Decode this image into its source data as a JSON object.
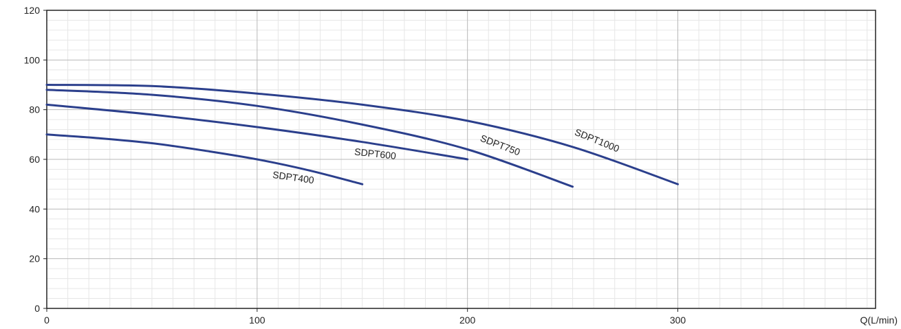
{
  "chart_data": {
    "type": "line",
    "title": "",
    "xlabel": "Q(L/min)",
    "ylabel": "",
    "xlim": [
      0,
      394
    ],
    "ylim": [
      0,
      120
    ],
    "x_ticks": [
      0,
      100,
      200,
      300
    ],
    "y_ticks": [
      0,
      20,
      40,
      60,
      80,
      100,
      120
    ],
    "grid": true,
    "series_color": "#2b3f8c",
    "series": [
      {
        "name": "SDPT400",
        "x": [
          0,
          25,
          50,
          75,
          100,
          125,
          150
        ],
        "y": [
          70,
          68.5,
          66.5,
          63.5,
          60,
          55.5,
          50
        ]
      },
      {
        "name": "SDPT600",
        "x": [
          0,
          50,
          100,
          150,
          200
        ],
        "y": [
          82,
          78,
          73,
          67,
          60
        ]
      },
      {
        "name": "SDPT750",
        "x": [
          0,
          50,
          100,
          150,
          200,
          250
        ],
        "y": [
          88,
          86,
          81.5,
          74,
          64,
          49
        ]
      },
      {
        "name": "SDPT1000",
        "x": [
          0,
          50,
          100,
          150,
          200,
          250,
          300
        ],
        "y": [
          90,
          89.5,
          86.5,
          82,
          75.5,
          65,
          50
        ]
      }
    ]
  }
}
